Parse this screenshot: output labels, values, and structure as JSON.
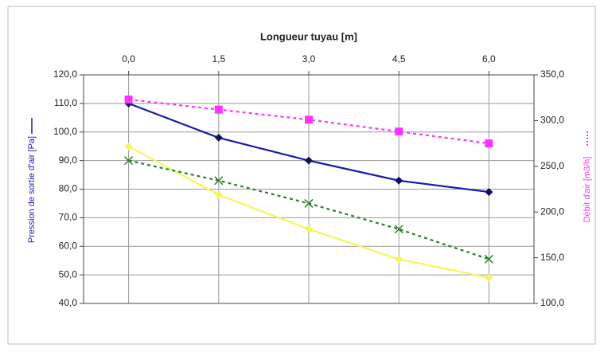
{
  "chart_data": {
    "type": "line",
    "x_label": "Longueur tuyau [m]",
    "y_label": "Pression de sortie d'air [Pa]",
    "y2_label": "Débit d'air [m3/h]",
    "x": [
      0,
      1.5,
      3,
      4.5,
      6
    ],
    "xlim": [
      -0.75,
      6.75
    ],
    "xticks": [
      {
        "value": 0,
        "label": "0,0"
      },
      {
        "value": 1.5,
        "label": "1,5"
      },
      {
        "value": 3,
        "label": "3,0"
      },
      {
        "value": 4.5,
        "label": "4,5"
      },
      {
        "value": 6,
        "label": "6,0"
      }
    ],
    "ylim": [
      40,
      120
    ],
    "yticks": [
      {
        "value": 40,
        "label": "40,0"
      },
      {
        "value": 50,
        "label": "50,0"
      },
      {
        "value": 60,
        "label": "60,0"
      },
      {
        "value": 70,
        "label": "70,0"
      },
      {
        "value": 80,
        "label": "80,0"
      },
      {
        "value": 90,
        "label": "90,0"
      },
      {
        "value": 100,
        "label": "100,0"
      },
      {
        "value": 110,
        "label": "110,0"
      },
      {
        "value": 120,
        "label": "120,0"
      }
    ],
    "y2lim": [
      100,
      350
    ],
    "y2ticks": [
      {
        "value": 100,
        "label": "100,0"
      },
      {
        "value": 150,
        "label": "150,0"
      },
      {
        "value": 200,
        "label": "200,0"
      },
      {
        "value": 250,
        "label": "250,0"
      },
      {
        "value": 300,
        "label": "300,0"
      },
      {
        "value": 350,
        "label": "350,0"
      }
    ],
    "grid": true,
    "series": [
      {
        "color": "#1c1ca8",
        "marker": "diamond",
        "dash": false,
        "axis": "y",
        "values": [
          110,
          98,
          90,
          83,
          79
        ]
      },
      {
        "color": "#f5f55a",
        "marker": "diamond",
        "dash": false,
        "axis": "y",
        "values": [
          95,
          78,
          66,
          55.5,
          49
        ]
      },
      {
        "color": "#2e7d32",
        "marker": "x",
        "dash": true,
        "axis": "y",
        "values": [
          90,
          83,
          75,
          66,
          55.5
        ]
      },
      {
        "color": "#ff33ff",
        "marker": "square",
        "dash": true,
        "axis": "y2",
        "values": [
          323,
          312,
          301,
          288,
          275
        ]
      }
    ]
  }
}
